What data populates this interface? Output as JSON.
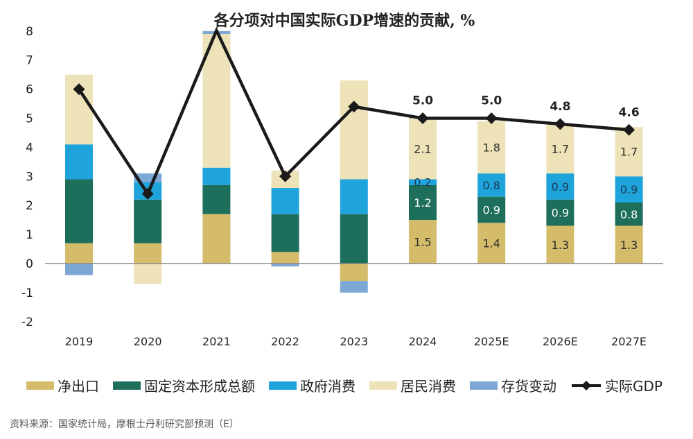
{
  "chart_data": {
    "type": "bar",
    "stacked": true,
    "title": "各分项对中国实际GDP增速的贡献, %",
    "xlabel": "",
    "ylabel": "",
    "ylim": [
      -2,
      8
    ],
    "yticks": [
      -2,
      -1,
      0,
      1,
      2,
      3,
      4,
      5,
      6,
      7,
      8
    ],
    "categories": [
      "2019",
      "2020",
      "2021",
      "2022",
      "2023",
      "2024",
      "2025E",
      "2026E",
      "2027E"
    ],
    "series": [
      {
        "name": "净出口",
        "color": "#D4BC6A",
        "label_color": "#2a2a2a",
        "values": [
          0.7,
          0.7,
          1.7,
          0.4,
          -0.6,
          1.5,
          1.4,
          1.3,
          1.3
        ],
        "labels": [
          null,
          null,
          null,
          null,
          null,
          "1.5",
          "1.4",
          "1.3",
          "1.3"
        ]
      },
      {
        "name": "固定资本形成总额",
        "color": "#1E6E5C",
        "label_color": "#ffffff",
        "values": [
          2.2,
          1.5,
          1.0,
          1.3,
          1.7,
          1.2,
          0.9,
          0.9,
          0.8
        ],
        "labels": [
          null,
          null,
          null,
          null,
          null,
          "1.2",
          "0.9",
          "0.9",
          "0.8"
        ]
      },
      {
        "name": "政府消费",
        "color": "#1FA3DB",
        "label_color": "#1b3a55",
        "values": [
          1.2,
          0.6,
          0.6,
          0.9,
          1.2,
          0.2,
          0.8,
          0.9,
          0.9
        ],
        "labels": [
          null,
          null,
          null,
          null,
          null,
          "0.2",
          "0.8",
          "0.9",
          "0.9"
        ]
      },
      {
        "name": "居民消费",
        "color": "#EDE2B8",
        "label_color": "#2a2a2a",
        "values": [
          2.4,
          -0.7,
          4.6,
          0.6,
          3.4,
          2.1,
          1.8,
          1.7,
          1.7
        ],
        "labels": [
          null,
          null,
          null,
          null,
          null,
          "2.1",
          "1.8",
          "1.7",
          "1.7"
        ]
      },
      {
        "name": "存货变动",
        "color": "#7DA8D6",
        "label_color": "#2a2a2a",
        "values": [
          -0.4,
          0.3,
          0.1,
          -0.1,
          -0.4,
          0.05,
          0,
          0,
          0
        ],
        "labels": [
          null,
          null,
          null,
          null,
          null,
          null,
          null,
          null,
          null
        ]
      }
    ],
    "line": {
      "name": "实际GDP",
      "color": "#1a1a1a",
      "values": [
        6.0,
        2.4,
        8.1,
        3.0,
        5.4,
        5.0,
        5.0,
        4.8,
        4.6
      ],
      "labels": [
        null,
        null,
        null,
        null,
        null,
        "5.0",
        "5.0",
        "4.8",
        "4.6"
      ]
    },
    "legend_position": "bottom",
    "grid": false
  },
  "legend": [
    "净出口",
    "固定资本形成总额",
    "政府消费",
    "居民消费",
    "存货变动",
    "实际GDP"
  ],
  "source": "资料来源：国家统计局，摩根士丹利研究部预测（E）"
}
